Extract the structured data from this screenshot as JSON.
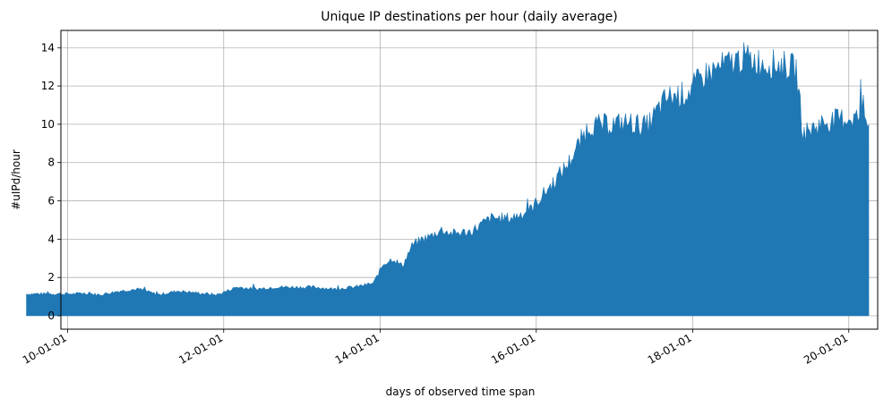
{
  "chart_data": {
    "type": "area",
    "title": "Unique IP destinations per hour (daily average)",
    "xlabel": "days of observed time span",
    "ylabel": "#uIPd/hour",
    "x_type": "date",
    "xlim": [
      "2009-12-01",
      "2020-05-15"
    ],
    "ylim": [
      -0.7,
      14.9
    ],
    "x_ticks": [
      "2010-01-01",
      "2012-01-01",
      "2014-01-01",
      "2016-01-01",
      "2018-01-01",
      "2020-01-01"
    ],
    "x_tick_labels": [
      "10-01-01",
      "12-01-01",
      "14-01-01",
      "16-01-01",
      "18-01-01",
      "20-01-01"
    ],
    "y_ticks": [
      0,
      2,
      4,
      6,
      8,
      10,
      12,
      14
    ],
    "y_tick_labels": [
      "0",
      "2",
      "4",
      "6",
      "8",
      "10",
      "12",
      "14"
    ],
    "grid": true,
    "color": "#1f77b4",
    "series": [
      {
        "x": [
          "2010-03-01",
          "2010-06-01",
          "2010-09-01",
          "2010-12-01",
          "2011-03-01",
          "2011-06-01",
          "2011-09-01",
          "2011-12-01",
          "2012-03-01",
          "2012-06-01",
          "2012-09-01",
          "2012-12-01",
          "2013-03-01",
          "2013-06-01",
          "2013-09-01",
          "2013-12-01",
          "2014-01-15",
          "2014-03-01",
          "2014-04-15",
          "2014-06-01",
          "2014-07-15",
          "2014-09-01",
          "2014-10-15",
          "2014-12-01",
          "2015-03-01",
          "2015-06-01",
          "2015-09-01",
          "2015-12-01",
          "2016-03-01",
          "2016-06-01",
          "2016-09-01",
          "2016-12-01",
          "2017-03-01",
          "2017-06-01",
          "2017-09-01",
          "2017-12-01",
          "2018-03-01",
          "2018-06-01",
          "2018-09-01",
          "2018-12-01",
          "2019-03-01",
          "2019-05-01",
          "2019-06-01",
          "2019-09-01",
          "2019-12-01",
          "2020-03-01"
        ],
        "y": [
          1.2,
          1.1,
          1.3,
          1.4,
          1.1,
          1.3,
          1.2,
          1.1,
          1.5,
          1.4,
          1.5,
          1.5,
          1.5,
          1.4,
          1.5,
          1.7,
          2.7,
          3.0,
          2.6,
          3.7,
          4.0,
          4.2,
          4.5,
          4.3,
          4.4,
          5.1,
          5.1,
          5.5,
          6.7,
          8.0,
          9.9,
          10.0,
          10.1,
          9.9,
          11.4,
          11.6,
          12.6,
          13.1,
          13.5,
          13.2,
          13.1,
          12.9,
          9.5,
          10.1,
          10.3,
          10.4
        ]
      }
    ]
  }
}
